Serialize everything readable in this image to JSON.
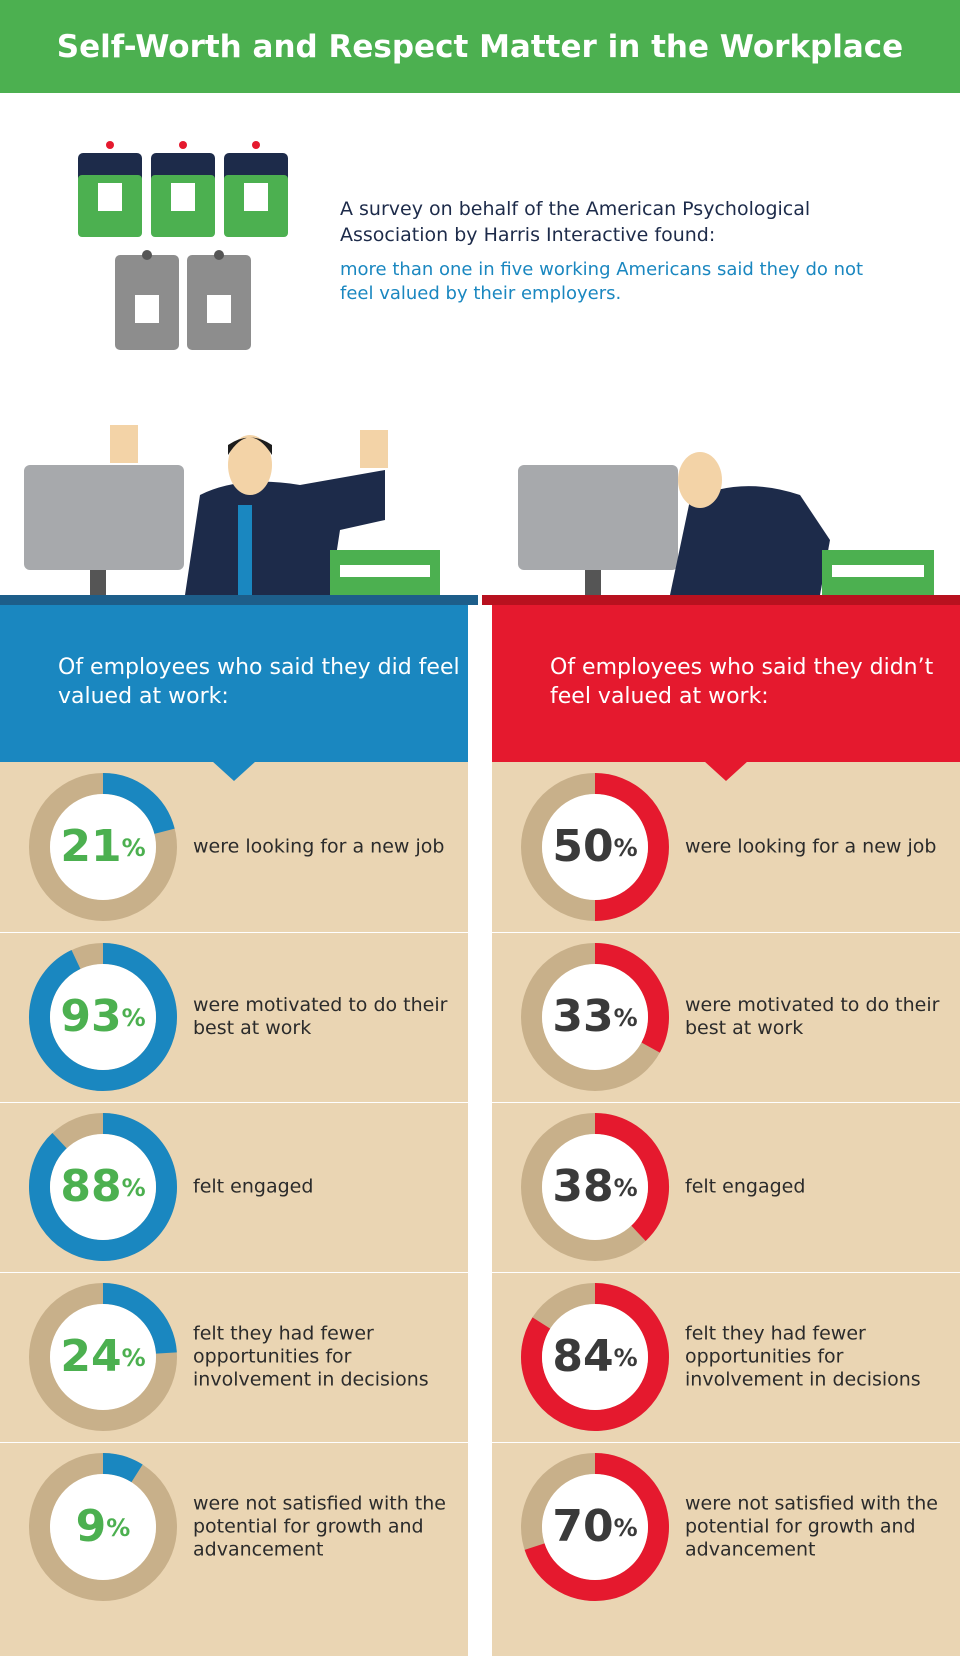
{
  "header": {
    "title": "Self-Worth and Respect Matter in the Workplace"
  },
  "intro": {
    "text": "A survey on behalf of the American Psychological Association by Harris Interactive found:",
    "finding": "more than one in five working Americans said they do not feel valued by their employers."
  },
  "unit": "%",
  "scale": [
    0,
    100
  ],
  "panels": [
    {
      "heading": "Of employees who said they did feel valued at work:",
      "color": "#1a87c0",
      "number_color": "#4cb050",
      "items": [
        {
          "value": 21,
          "label": "were looking for a new job"
        },
        {
          "value": 93,
          "label": "were motivated to do their best at work"
        },
        {
          "value": 88,
          "label": "felt engaged"
        },
        {
          "value": 24,
          "label": "felt they had fewer opportunities for involvement in decisions"
        },
        {
          "value": 9,
          "label": "were not satisfied with the potential for growth and advancement"
        }
      ]
    },
    {
      "heading": "Of employees who said they didn’t feel valued at work:",
      "color": "#e5192e",
      "number_color": "#3a3a3a",
      "items": [
        {
          "value": 50,
          "label": "were looking for a new job"
        },
        {
          "value": 33,
          "label": "were motivated to do their best at work"
        },
        {
          "value": 38,
          "label": "felt engaged"
        },
        {
          "value": 84,
          "label": "felt they had fewer opportunities for involvement in decisions"
        },
        {
          "value": 70,
          "label": "were not satisfied with the potential for growth and advancement"
        }
      ]
    }
  ]
}
